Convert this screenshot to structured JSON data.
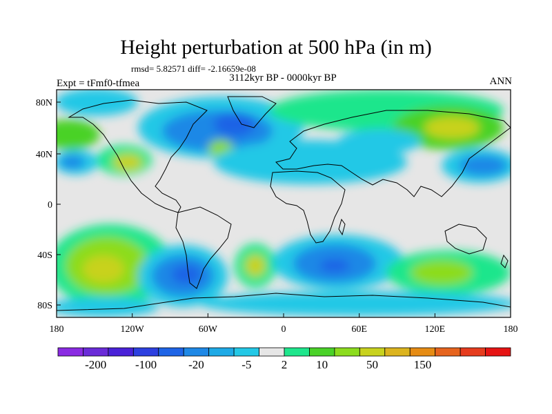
{
  "title": "Height perturbation at 500 hPa (in m)",
  "stats": "rmsd= 5.82571 diff= -2.16659e-08",
  "period": "3112kyr BP - 0000kyr BP",
  "experiment": "Expt = tFmf0-tfmea",
  "season": "ANN",
  "lat_ticks": [
    "80N",
    "40N",
    "0",
    "40S",
    "80S"
  ],
  "lon_ticks": [
    "180",
    "120W",
    "60W",
    "0",
    "60E",
    "120E",
    "180"
  ],
  "colorbar": {
    "colors": [
      "#8a2be2",
      "#6a2bd8",
      "#4a22d8",
      "#2d40e0",
      "#1e64e6",
      "#1e88e6",
      "#1eaae6",
      "#23c8e6",
      "#e6e6e6",
      "#1ee68c",
      "#4ad228",
      "#8cdc1e",
      "#c8d21e",
      "#dcb41e",
      "#e68c14",
      "#e6641e",
      "#e63c1e",
      "#e61414"
    ],
    "labels": [
      "-200",
      "-100",
      "-20",
      "-5",
      "2",
      "10",
      "50",
      "150"
    ]
  }
}
